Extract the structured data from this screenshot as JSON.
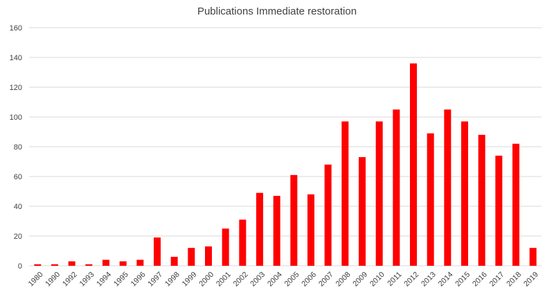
{
  "chart_data": {
    "type": "bar",
    "title": "Publications Immediate restoration",
    "xlabel": "",
    "ylabel": "",
    "categories": [
      "1980",
      "1990",
      "1992",
      "1993",
      "1994",
      "1995",
      "1996",
      "1997",
      "1998",
      "1999",
      "2000",
      "2001",
      "2002",
      "2003",
      "2004",
      "2005",
      "2006",
      "2007",
      "2008",
      "2009",
      "2010",
      "2011",
      "2012",
      "2013",
      "2014",
      "2015",
      "2016",
      "2017",
      "2018",
      "2019"
    ],
    "values": [
      1,
      1,
      3,
      1,
      4,
      3,
      4,
      19,
      6,
      12,
      13,
      25,
      31,
      49,
      47,
      61,
      48,
      68,
      97,
      73,
      97,
      105,
      136,
      89,
      105,
      97,
      88,
      74,
      82,
      12
    ],
    "ylim": [
      0,
      160
    ],
    "yticks": [
      0,
      20,
      40,
      60,
      80,
      100,
      120,
      140,
      160
    ],
    "grid": true,
    "legend": "none",
    "bar_color": "#ff0000",
    "grid_color": "#d9d9d9",
    "text_color": "#404040"
  }
}
